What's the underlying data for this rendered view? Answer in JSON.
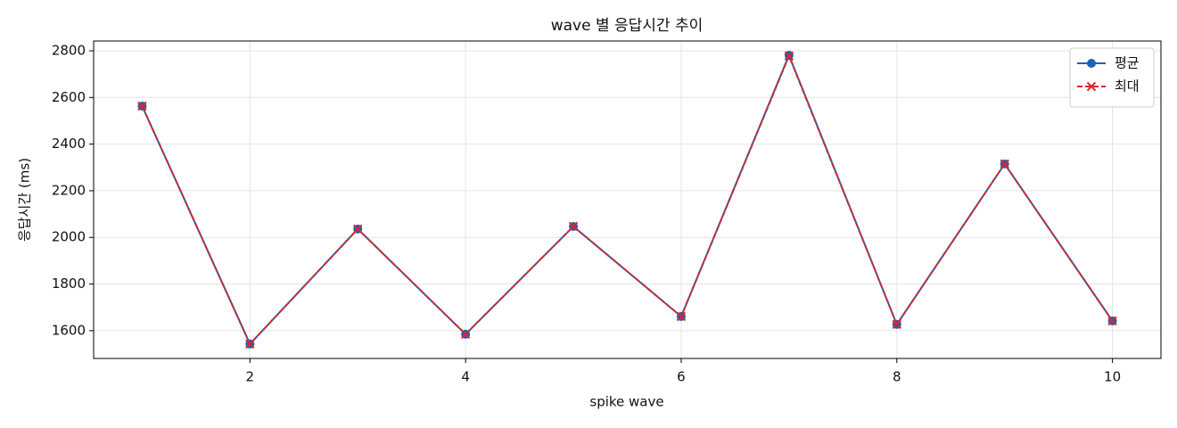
{
  "chart_data": {
    "type": "line",
    "title": "wave 별 응답시간 추이",
    "x_label": "spike wave",
    "y_label": "응답시간 (ms)",
    "x": [
      1,
      2,
      3,
      4,
      5,
      6,
      7,
      8,
      9,
      10
    ],
    "series": [
      {
        "name": "평균",
        "color": "#1f63b8",
        "values": [
          2563,
          1543,
          2036,
          1585,
          2047,
          1661,
          2781,
          1627,
          2315,
          1642
        ]
      },
      {
        "name": "최대",
        "color": "#d62728",
        "values": [
          2563,
          1543,
          2036,
          1585,
          2047,
          1661,
          2778,
          1627,
          2315,
          1642
        ]
      }
    ],
    "xlim": [
      0.55,
      10.45
    ],
    "xticks": [
      2,
      4,
      6,
      8,
      10
    ],
    "ylim": [
      1481,
      2842
    ],
    "yticks": [
      1600,
      1800,
      2000,
      2200,
      2400,
      2600,
      2800
    ],
    "grid": true,
    "legend": "upper right"
  }
}
